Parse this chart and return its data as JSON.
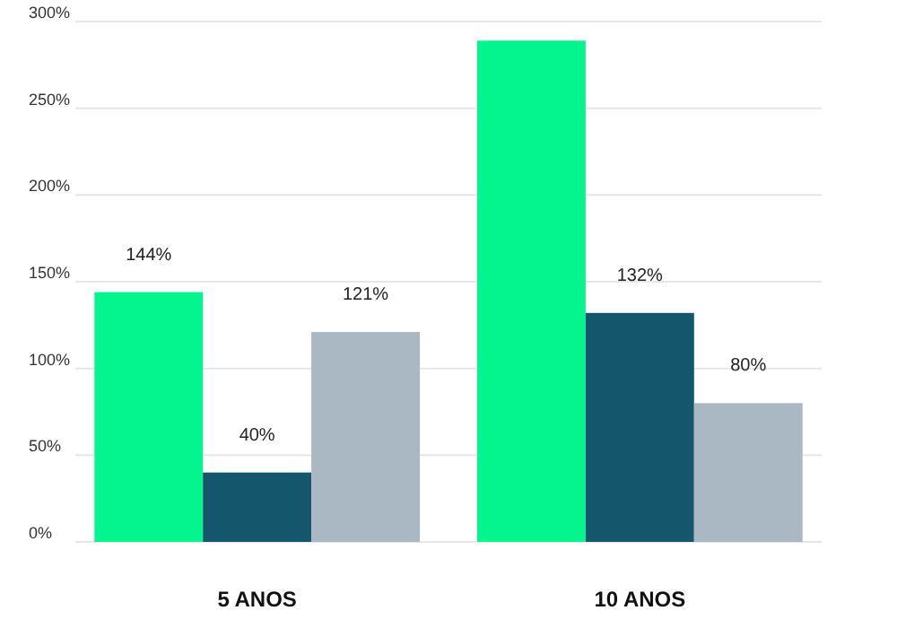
{
  "chart_data": {
    "type": "bar",
    "categories": [
      "5 ANOS",
      "10 ANOS"
    ],
    "series": [
      {
        "color": "#05f58e",
        "values": [
          144,
          289
        ],
        "value_labels": [
          "144%",
          null
        ]
      },
      {
        "color": "#14566b",
        "values": [
          40,
          132
        ],
        "value_labels": [
          "40%",
          "132%"
        ]
      },
      {
        "color": "#a9b8c3",
        "values": [
          121,
          80
        ],
        "value_labels": [
          "121%",
          "80%"
        ]
      }
    ],
    "ylim": [
      0,
      300
    ],
    "yticks": [
      {
        "value": 0,
        "label": "0%"
      },
      {
        "value": 50,
        "label": "50%"
      },
      {
        "value": 100,
        "label": "100%"
      },
      {
        "value": 150,
        "label": "150%"
      },
      {
        "value": 200,
        "label": "200%"
      },
      {
        "value": 250,
        "label": "250%"
      },
      {
        "value": 300,
        "label": "300%"
      }
    ],
    "grid": "y"
  }
}
